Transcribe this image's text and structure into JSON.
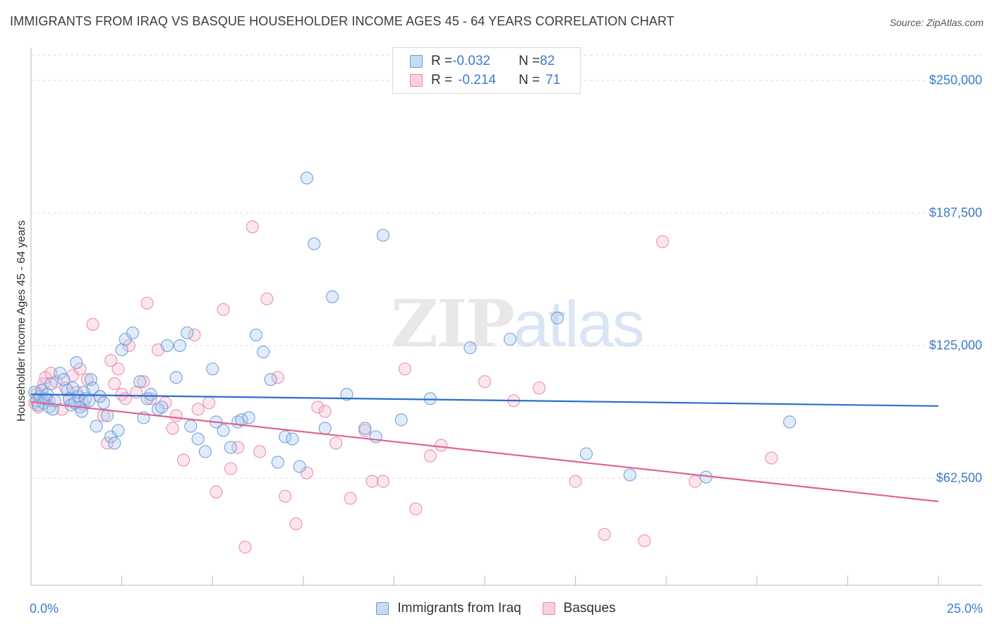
{
  "title": "IMMIGRANTS FROM IRAQ VS BASQUE HOUSEHOLDER INCOME AGES 45 - 64 YEARS CORRELATION CHART",
  "source": "Source: ZipAtlas.com",
  "watermark": {
    "part1": "ZIP",
    "part2": "atlas"
  },
  "legend": {
    "rows": [
      {
        "r_label": "R = ",
        "r_value": "-0.032",
        "n_label": "N = ",
        "n_value": "82"
      },
      {
        "r_label": "R = ",
        "r_value": "-0.214",
        "n_label": "N = ",
        "n_value": "71"
      }
    ]
  },
  "colors": {
    "blue_fill": "#a8c8f0",
    "blue_stroke": "#6a9ad8",
    "blue_line": "#2a6fcc",
    "pink_fill": "#f6b8cb",
    "pink_stroke": "#e88aa8",
    "pink_line": "#e0648e",
    "tick_text": "#3d7cc9",
    "grid": "#dddddd"
  },
  "chart_data": {
    "type": "scatter",
    "xlabel": "",
    "ylabel": "Householder Income Ages 45 - 64 years",
    "xlim": [
      0,
      25
    ],
    "ylim": [
      12000,
      262000
    ],
    "x_tick_labels": [
      {
        "value": 0,
        "label": "0.0%"
      },
      {
        "value": 25,
        "label": "25.0%"
      }
    ],
    "y_ticks": [
      {
        "value": 62500,
        "label": "$62,500"
      },
      {
        "value": 125000,
        "label": "$125,000"
      },
      {
        "value": 187500,
        "label": "$187,500"
      },
      {
        "value": 250000,
        "label": "$250,000"
      }
    ],
    "series": [
      {
        "name": "Immigrants from Iraq",
        "color": "blue",
        "trend": {
          "x": [
            0,
            25
          ],
          "y": [
            102000,
            96500
          ]
        },
        "points": [
          [
            0.1,
            103000
          ],
          [
            0.15,
            99000
          ],
          [
            0.2,
            97000
          ],
          [
            0.25,
            101000
          ],
          [
            0.3,
            104000
          ],
          [
            0.35,
            98000
          ],
          [
            0.4,
            100000
          ],
          [
            0.45,
            102000
          ],
          [
            0.5,
            96000
          ],
          [
            0.55,
            107000
          ],
          [
            0.6,
            95000
          ],
          [
            0.65,
            99000
          ],
          [
            0.8,
            112000
          ],
          [
            0.9,
            109000
          ],
          [
            1.0,
            104000
          ],
          [
            1.05,
            100000
          ],
          [
            1.1,
            97000
          ],
          [
            1.15,
            105000
          ],
          [
            1.2,
            98000
          ],
          [
            1.25,
            117000
          ],
          [
            1.3,
            101000
          ],
          [
            1.35,
            96000
          ],
          [
            1.4,
            94000
          ],
          [
            1.45,
            103000
          ],
          [
            1.5,
            100000
          ],
          [
            1.6,
            99000
          ],
          [
            1.65,
            109000
          ],
          [
            1.7,
            105000
          ],
          [
            1.8,
            87000
          ],
          [
            1.9,
            101000
          ],
          [
            2.0,
            98000
          ],
          [
            2.1,
            92000
          ],
          [
            2.2,
            82000
          ],
          [
            2.3,
            79000
          ],
          [
            2.4,
            85000
          ],
          [
            2.5,
            123000
          ],
          [
            2.6,
            128000
          ],
          [
            2.8,
            131000
          ],
          [
            3.0,
            108000
          ],
          [
            3.1,
            91000
          ],
          [
            3.2,
            100000
          ],
          [
            3.3,
            102000
          ],
          [
            3.5,
            95000
          ],
          [
            3.6,
            96000
          ],
          [
            3.75,
            125000
          ],
          [
            4.0,
            110000
          ],
          [
            4.1,
            125000
          ],
          [
            4.3,
            131000
          ],
          [
            4.4,
            87000
          ],
          [
            4.6,
            81000
          ],
          [
            4.8,
            75000
          ],
          [
            5.0,
            114000
          ],
          [
            5.1,
            89000
          ],
          [
            5.3,
            85000
          ],
          [
            5.5,
            77000
          ],
          [
            5.7,
            89000
          ],
          [
            5.8,
            90000
          ],
          [
            6.0,
            91000
          ],
          [
            6.2,
            130000
          ],
          [
            6.4,
            122000
          ],
          [
            6.6,
            109000
          ],
          [
            6.8,
            70000
          ],
          [
            7.0,
            82000
          ],
          [
            7.2,
            81000
          ],
          [
            7.4,
            68000
          ],
          [
            7.6,
            204000
          ],
          [
            7.8,
            173000
          ],
          [
            8.1,
            86000
          ],
          [
            8.3,
            148000
          ],
          [
            8.7,
            102000
          ],
          [
            9.2,
            86000
          ],
          [
            9.5,
            82000
          ],
          [
            9.7,
            177000
          ],
          [
            10.2,
            90000
          ],
          [
            11.0,
            100000
          ],
          [
            12.1,
            124000
          ],
          [
            13.2,
            128000
          ],
          [
            14.5,
            138000
          ],
          [
            15.3,
            74000
          ],
          [
            16.5,
            64000
          ],
          [
            18.6,
            63000
          ],
          [
            20.9,
            89000
          ]
        ]
      },
      {
        "name": "Basques",
        "color": "pink",
        "trend": {
          "x": [
            0,
            25
          ],
          "y": [
            98500,
            51500
          ]
        },
        "points": [
          [
            0.1,
            98000
          ],
          [
            0.15,
            102000
          ],
          [
            0.2,
            96000
          ],
          [
            0.3,
            104000
          ],
          [
            0.35,
            107000
          ],
          [
            0.4,
            110000
          ],
          [
            0.5,
            99000
          ],
          [
            0.55,
            112000
          ],
          [
            0.7,
            108000
          ],
          [
            0.85,
            95000
          ],
          [
            0.95,
            105000
          ],
          [
            1.05,
            100000
          ],
          [
            1.15,
            111000
          ],
          [
            1.25,
            103000
          ],
          [
            1.35,
            114000
          ],
          [
            1.45,
            97000
          ],
          [
            1.55,
            109000
          ],
          [
            1.7,
            135000
          ],
          [
            1.9,
            101000
          ],
          [
            2.0,
            92000
          ],
          [
            2.1,
            79000
          ],
          [
            2.2,
            118000
          ],
          [
            2.3,
            107000
          ],
          [
            2.4,
            114000
          ],
          [
            2.5,
            102000
          ],
          [
            2.6,
            100000
          ],
          [
            2.7,
            125000
          ],
          [
            2.9,
            103000
          ],
          [
            3.1,
            108000
          ],
          [
            3.2,
            145000
          ],
          [
            3.3,
            100000
          ],
          [
            3.5,
            123000
          ],
          [
            3.7,
            98000
          ],
          [
            3.9,
            86000
          ],
          [
            4.0,
            92000
          ],
          [
            4.2,
            71000
          ],
          [
            4.5,
            130000
          ],
          [
            4.6,
            95000
          ],
          [
            4.9,
            98000
          ],
          [
            5.1,
            56000
          ],
          [
            5.3,
            142000
          ],
          [
            5.5,
            67000
          ],
          [
            5.7,
            77000
          ],
          [
            5.9,
            30000
          ],
          [
            6.1,
            181000
          ],
          [
            6.3,
            75000
          ],
          [
            6.5,
            147000
          ],
          [
            6.8,
            110000
          ],
          [
            7.0,
            54000
          ],
          [
            7.3,
            41000
          ],
          [
            7.6,
            65000
          ],
          [
            7.9,
            96000
          ],
          [
            8.1,
            94000
          ],
          [
            8.4,
            79000
          ],
          [
            8.8,
            53000
          ],
          [
            9.2,
            85000
          ],
          [
            9.4,
            61000
          ],
          [
            9.7,
            61000
          ],
          [
            10.3,
            114000
          ],
          [
            10.6,
            48000
          ],
          [
            11.0,
            73000
          ],
          [
            11.3,
            78000
          ],
          [
            12.5,
            108000
          ],
          [
            13.3,
            99000
          ],
          [
            14.0,
            105000
          ],
          [
            15.0,
            61000
          ],
          [
            15.8,
            36000
          ],
          [
            16.9,
            33000
          ],
          [
            17.4,
            174000
          ],
          [
            18.3,
            61000
          ],
          [
            20.4,
            72000
          ]
        ]
      }
    ]
  },
  "bottom_legend": [
    {
      "label": "Immigrants from Iraq",
      "color": "blue"
    },
    {
      "label": "Basques",
      "color": "pink"
    }
  ]
}
